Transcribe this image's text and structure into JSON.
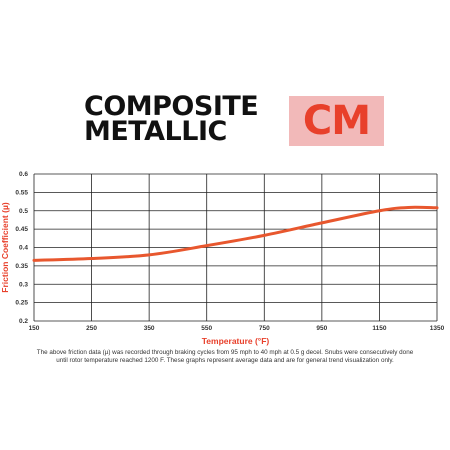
{
  "brand": {
    "title_lines": [
      "COMPOSITE",
      "METALLIC"
    ],
    "badge_text": "CM",
    "badge_bg": "#f2b9b9",
    "badge_fg": "#e8402b"
  },
  "chart_data": {
    "type": "line",
    "title": "",
    "xlabel": "Temperature (°F)",
    "ylabel": "Friction Coefficient (µ)",
    "xlim": [
      150,
      1350
    ],
    "ylim": [
      0.2,
      0.6
    ],
    "xticks": [
      150,
      250,
      350,
      550,
      750,
      950,
      1150,
      1350
    ],
    "xtick_labels": [
      "150",
      "250",
      "350",
      "550",
      "750",
      "950",
      "1150",
      "1350"
    ],
    "yticks": [
      0.2,
      0.25,
      0.3,
      0.35,
      0.4,
      0.45,
      0.5,
      0.55,
      0.6
    ],
    "ytick_labels": [
      "0.2",
      "0.25",
      "0.3",
      "0.35",
      "0.4",
      "0.45",
      "0.5",
      "0.55",
      "0.6"
    ],
    "grid": true,
    "series": [
      {
        "color": "#e8572e",
        "x": [
          150,
          250,
          350,
          550,
          750,
          950,
          1150,
          1250,
          1350
        ],
        "y": [
          0.365,
          0.37,
          0.38,
          0.405,
          0.433,
          0.467,
          0.5,
          0.509,
          0.508
        ]
      }
    ],
    "label_color": "#e8402b"
  },
  "footnote": {
    "lines": [
      "The above friction data (µ) was recorded through braking cycles from 95 mph to 40 mph at 0.5 g decel. Snubs were consecutively done",
      "until rotor temperature reached 1200 F. These graphs represent average data and are for general trend visualization only."
    ]
  }
}
